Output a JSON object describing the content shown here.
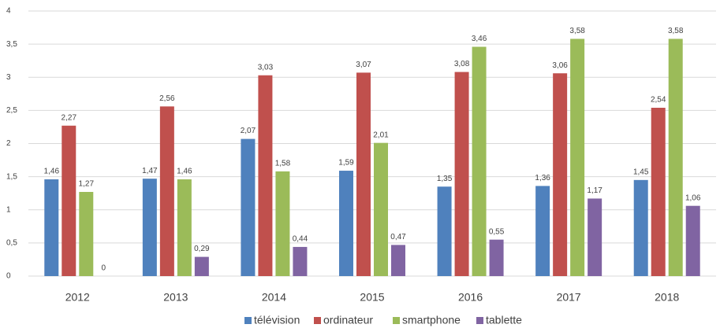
{
  "chart_data": {
    "type": "bar",
    "categories": [
      "2012",
      "2013",
      "2014",
      "2015",
      "2016",
      "2017",
      "2018"
    ],
    "series": [
      {
        "name": "télévision",
        "color": "#4f81bd",
        "values": [
          1.46,
          1.47,
          2.07,
          1.59,
          1.35,
          1.36,
          1.45
        ],
        "value_labels": [
          "1,46",
          "1,47",
          "2,07",
          "1,59",
          "1,35",
          "1,36",
          "1,45"
        ]
      },
      {
        "name": "ordinateur",
        "color": "#c0504d",
        "values": [
          2.27,
          2.56,
          3.03,
          3.07,
          3.08,
          3.06,
          2.54
        ],
        "value_labels": [
          "2,27",
          "2,56",
          "3,03",
          "3,07",
          "3,08",
          "3,06",
          "2,54"
        ]
      },
      {
        "name": "smartphone",
        "color": "#9bbb59",
        "values": [
          1.27,
          1.46,
          1.58,
          2.01,
          3.46,
          3.58,
          3.58
        ],
        "value_labels": [
          "1,27",
          "1,46",
          "1,58",
          "2,01",
          "3,46",
          "3,58",
          "3,58"
        ]
      },
      {
        "name": "tablette",
        "color": "#8064a2",
        "values": [
          0,
          0.29,
          0.44,
          0.47,
          0.55,
          1.17,
          1.06
        ],
        "value_labels": [
          "0",
          "0,29",
          "0,44",
          "0,47",
          "0,55",
          "1,17",
          "1,06"
        ]
      }
    ],
    "ylim": [
      0,
      4
    ],
    "yticks": [
      0,
      {
        "value": 0.5,
        "label": "0,5"
      },
      1,
      {
        "value": 1.5,
        "label": "1,5"
      },
      2,
      {
        "value": 2.5,
        "label": "2,5"
      },
      3,
      {
        "value": 3.5,
        "label": "3,5"
      },
      4
    ],
    "grid": true,
    "legend": "bottom"
  }
}
